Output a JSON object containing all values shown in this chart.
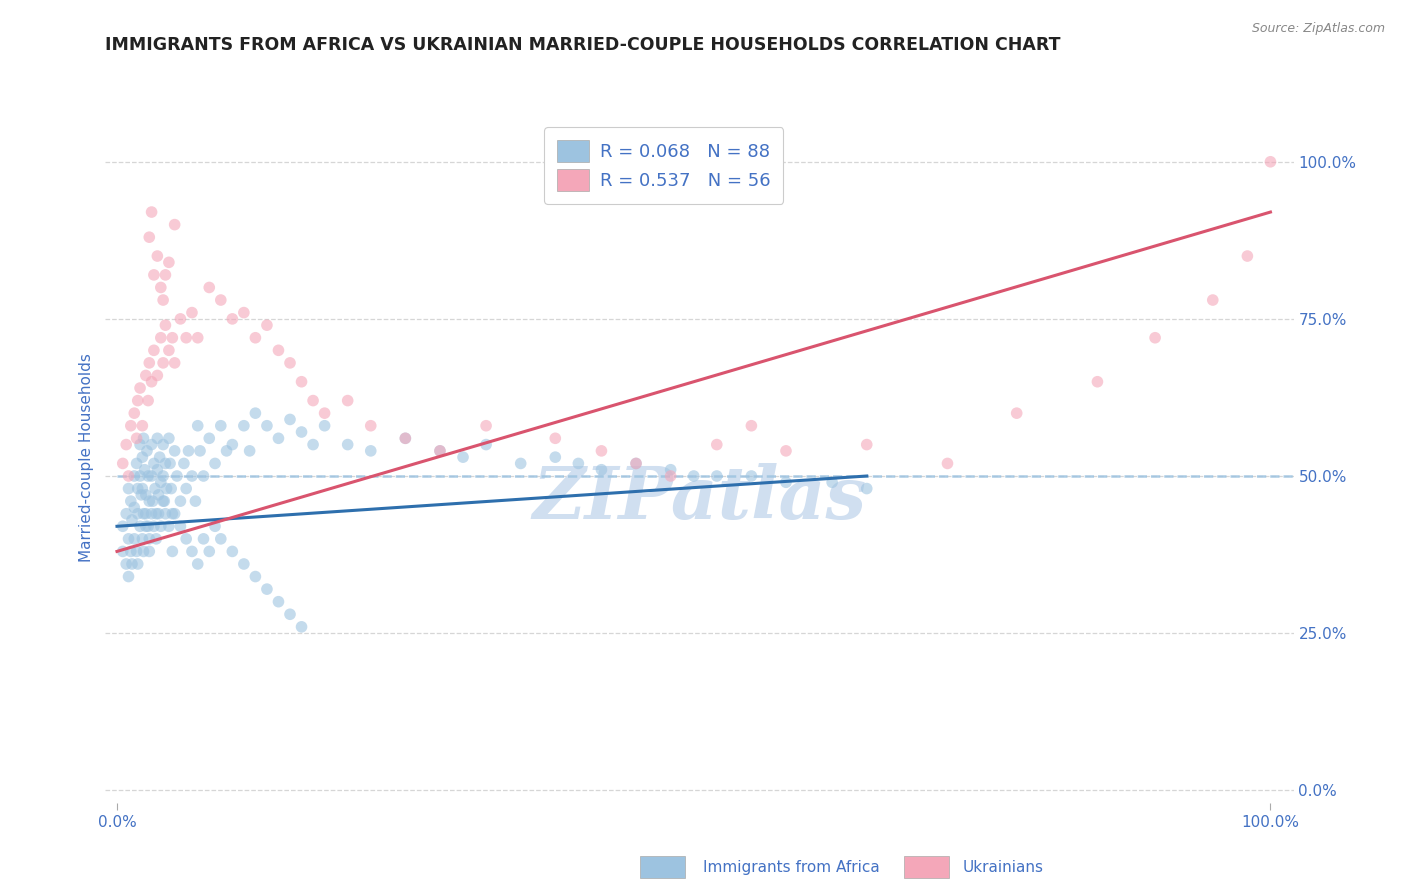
{
  "title": "IMMIGRANTS FROM AFRICA VS UKRAINIAN MARRIED-COUPLE HOUSEHOLDS CORRELATION CHART",
  "source_text": "Source: ZipAtlas.com",
  "ylabel": "Married-couple Households",
  "right_ytick_labels": [
    "0.0%",
    "25.0%",
    "50.0%",
    "75.0%",
    "100.0%"
  ],
  "right_ytick_values": [
    0.0,
    0.25,
    0.5,
    0.75,
    1.0
  ],
  "xlim": [
    -0.01,
    1.02
  ],
  "ylim": [
    -0.02,
    1.08
  ],
  "legend_items": [
    {
      "label": "R = 0.068   N = 88",
      "color": "#9dc3e0"
    },
    {
      "label": "R = 0.537   N = 56",
      "color": "#f4a7b9"
    }
  ],
  "legend_labels_bottom": [
    "Immigrants from Africa",
    "Ukrainians"
  ],
  "series1_color": "#9dc3e0",
  "series2_color": "#f4a7b9",
  "trendline1_color": "#2e6fad",
  "trendline2_color": "#d9546e",
  "refline_color": "#9dc3e0",
  "watermark": "ZIPatlas",
  "watermark_color": "#d0dff0",
  "title_color": "#222222",
  "title_fontsize": 12.5,
  "axis_label_color": "#4472c4",
  "axis_tick_color": "#4472c4",
  "grid_color": "#cccccc",
  "series1_x": [
    0.005,
    0.008,
    0.01,
    0.01,
    0.012,
    0.013,
    0.015,
    0.015,
    0.017,
    0.018,
    0.018,
    0.02,
    0.02,
    0.021,
    0.022,
    0.022,
    0.023,
    0.023,
    0.024,
    0.025,
    0.025,
    0.026,
    0.027,
    0.028,
    0.028,
    0.03,
    0.03,
    0.031,
    0.032,
    0.033,
    0.034,
    0.035,
    0.035,
    0.036,
    0.037,
    0.038,
    0.04,
    0.04,
    0.041,
    0.042,
    0.043,
    0.045,
    0.046,
    0.047,
    0.048,
    0.05,
    0.052,
    0.055,
    0.058,
    0.06,
    0.062,
    0.065,
    0.068,
    0.07,
    0.072,
    0.075,
    0.08,
    0.085,
    0.09,
    0.095,
    0.1,
    0.11,
    0.115,
    0.12,
    0.13,
    0.14,
    0.15,
    0.16,
    0.17,
    0.18,
    0.2,
    0.22,
    0.25,
    0.28,
    0.3,
    0.32,
    0.35,
    0.38,
    0.4,
    0.42,
    0.45,
    0.48,
    0.5,
    0.52,
    0.55,
    0.58,
    0.62,
    0.65
  ],
  "series1_y": [
    0.42,
    0.44,
    0.48,
    0.4,
    0.46,
    0.43,
    0.5,
    0.45,
    0.52,
    0.48,
    0.44,
    0.55,
    0.5,
    0.47,
    0.53,
    0.48,
    0.44,
    0.56,
    0.51,
    0.47,
    0.42,
    0.54,
    0.5,
    0.46,
    0.4,
    0.55,
    0.5,
    0.46,
    0.52,
    0.48,
    0.44,
    0.56,
    0.51,
    0.47,
    0.53,
    0.49,
    0.55,
    0.5,
    0.46,
    0.52,
    0.48,
    0.56,
    0.52,
    0.48,
    0.44,
    0.54,
    0.5,
    0.46,
    0.52,
    0.48,
    0.54,
    0.5,
    0.46,
    0.58,
    0.54,
    0.5,
    0.56,
    0.52,
    0.58,
    0.54,
    0.55,
    0.58,
    0.54,
    0.6,
    0.58,
    0.56,
    0.59,
    0.57,
    0.55,
    0.58,
    0.55,
    0.54,
    0.56,
    0.54,
    0.53,
    0.55,
    0.52,
    0.53,
    0.52,
    0.51,
    0.52,
    0.51,
    0.5,
    0.5,
    0.5,
    0.49,
    0.49,
    0.48
  ],
  "series1_low_x": [
    0.005,
    0.008,
    0.01,
    0.012,
    0.013,
    0.015,
    0.017,
    0.018,
    0.02,
    0.022,
    0.023,
    0.025,
    0.027,
    0.028,
    0.03,
    0.032,
    0.034,
    0.036,
    0.038,
    0.04,
    0.042,
    0.045,
    0.048,
    0.05,
    0.055,
    0.06,
    0.065,
    0.07,
    0.075,
    0.08,
    0.085,
    0.09,
    0.1,
    0.11,
    0.12,
    0.13,
    0.14,
    0.15,
    0.16
  ],
  "series1_low_y": [
    0.38,
    0.36,
    0.34,
    0.38,
    0.36,
    0.4,
    0.38,
    0.36,
    0.42,
    0.4,
    0.38,
    0.44,
    0.42,
    0.38,
    0.44,
    0.42,
    0.4,
    0.44,
    0.42,
    0.46,
    0.44,
    0.42,
    0.38,
    0.44,
    0.42,
    0.4,
    0.38,
    0.36,
    0.4,
    0.38,
    0.42,
    0.4,
    0.38,
    0.36,
    0.34,
    0.32,
    0.3,
    0.28,
    0.26
  ],
  "series2_x": [
    0.005,
    0.008,
    0.01,
    0.012,
    0.015,
    0.017,
    0.018,
    0.02,
    0.022,
    0.025,
    0.027,
    0.028,
    0.03,
    0.032,
    0.035,
    0.038,
    0.04,
    0.042,
    0.045,
    0.048,
    0.05,
    0.055,
    0.06,
    0.065,
    0.07,
    0.08,
    0.09,
    0.1,
    0.11,
    0.12,
    0.13,
    0.14,
    0.15,
    0.16,
    0.17,
    0.18,
    0.2,
    0.22,
    0.25,
    0.28,
    0.32,
    0.38,
    0.42,
    0.45,
    0.48,
    0.52,
    0.55,
    0.58,
    0.65,
    0.72,
    0.78,
    0.85,
    0.9,
    0.95,
    0.98,
    1.0
  ],
  "series2_y": [
    0.52,
    0.55,
    0.5,
    0.58,
    0.6,
    0.56,
    0.62,
    0.64,
    0.58,
    0.66,
    0.62,
    0.68,
    0.65,
    0.7,
    0.66,
    0.72,
    0.68,
    0.74,
    0.7,
    0.72,
    0.68,
    0.75,
    0.72,
    0.76,
    0.72,
    0.8,
    0.78,
    0.75,
    0.76,
    0.72,
    0.74,
    0.7,
    0.68,
    0.65,
    0.62,
    0.6,
    0.62,
    0.58,
    0.56,
    0.54,
    0.58,
    0.56,
    0.54,
    0.52,
    0.5,
    0.55,
    0.58,
    0.54,
    0.55,
    0.52,
    0.6,
    0.65,
    0.72,
    0.78,
    0.85,
    1.0
  ],
  "series2_high_x": [
    0.028,
    0.03,
    0.032,
    0.035,
    0.038,
    0.04,
    0.042,
    0.045,
    0.05
  ],
  "series2_high_y": [
    0.88,
    0.92,
    0.82,
    0.85,
    0.8,
    0.78,
    0.82,
    0.84,
    0.9
  ],
  "trendline1_x": [
    0.0,
    0.65
  ],
  "trendline1_y": [
    0.42,
    0.5
  ],
  "trendline2_x": [
    0.0,
    1.0
  ],
  "trendline2_y": [
    0.38,
    0.92
  ],
  "refline_y": 0.5,
  "refline_x": [
    0.0,
    1.02
  ]
}
